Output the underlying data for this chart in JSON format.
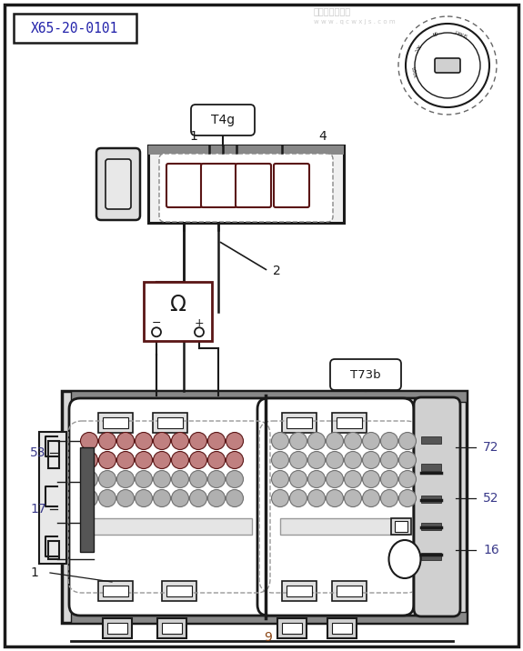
{
  "bg_color": "#e8e8e8",
  "border_color": "#1a1a1a",
  "line_color": "#2a2a2a",
  "dark_color": "#1a1a1a",
  "red_brown": "#5a1515",
  "dark_brown": "#3a1010",
  "label_color": "#3a3a8a",
  "gray_fill": "#d0d0d0",
  "light_gray": "#e8e8e8",
  "mid_gray": "#b0b0b0",
  "title_box": "X65-20-0101",
  "connector_top_label": "T4g",
  "connector_bottom_label": "T73b",
  "numbers": {
    "n1_top": "1",
    "n4_top": "4",
    "n2": "2",
    "n72": "72",
    "n53": "53",
    "n52": "52",
    "n17": "17",
    "n16": "16",
    "n1_bot": "1",
    "n9": "9"
  }
}
